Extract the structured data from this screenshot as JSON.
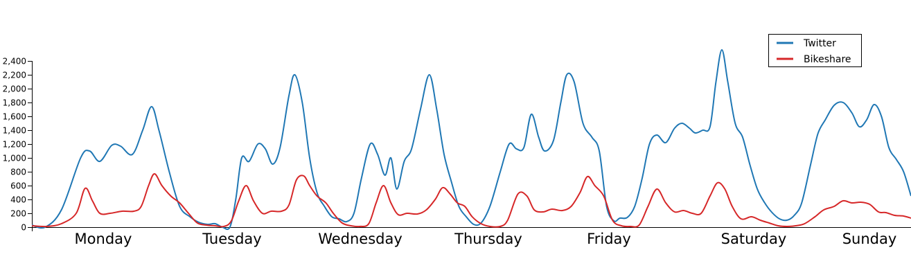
{
  "chart_data": {
    "type": "line",
    "x_categories": [
      "Monday",
      "Tuesday",
      "Wednesday",
      "Thursday",
      "Friday",
      "Saturday",
      "Sunday"
    ],
    "ylim": [
      0,
      2400
    ],
    "yticks": [
      0,
      200,
      400,
      600,
      800,
      1000,
      1200,
      1400,
      1600,
      1800,
      2000,
      2200,
      2400
    ],
    "ytick_labels": [
      "0",
      "200",
      "400",
      "600",
      "800",
      "1,000",
      "1,200",
      "1,400",
      "1,600",
      "1,800",
      "2,000",
      "2,200",
      "2,400"
    ],
    "legend_position": "top-right",
    "grid": false,
    "series": [
      {
        "name": "Twitter",
        "color": "#1f77b4",
        "points": [
          [
            0,
            30
          ],
          [
            0.9,
            0
          ],
          [
            2,
            250
          ],
          [
            3.3,
            1000
          ],
          [
            3.9,
            1100
          ],
          [
            4.6,
            950
          ],
          [
            5.4,
            1180
          ],
          [
            6,
            1170
          ],
          [
            6.8,
            1050
          ],
          [
            7.5,
            1400
          ],
          [
            8.1,
            1740
          ],
          [
            8.6,
            1400
          ],
          [
            9.3,
            800
          ],
          [
            10,
            300
          ],
          [
            10.7,
            150
          ],
          [
            11.3,
            70
          ],
          [
            11.9,
            40
          ],
          [
            12.4,
            50
          ],
          [
            12.9,
            0
          ],
          [
            13.4,
            0
          ],
          [
            13.8,
            400
          ],
          [
            14.2,
            1000
          ],
          [
            14.7,
            950
          ],
          [
            15.3,
            1200
          ],
          [
            15.8,
            1130
          ],
          [
            16.3,
            910
          ],
          [
            16.8,
            1150
          ],
          [
            17.4,
            1900
          ],
          [
            17.8,
            2200
          ],
          [
            18.3,
            1800
          ],
          [
            18.8,
            1000
          ],
          [
            19.3,
            500
          ],
          [
            19.8,
            300
          ],
          [
            20.3,
            150
          ],
          [
            20.8,
            120
          ],
          [
            21.3,
            80
          ],
          [
            21.8,
            200
          ],
          [
            22.3,
            700
          ],
          [
            22.9,
            1200
          ],
          [
            23.4,
            1050
          ],
          [
            23.9,
            750
          ],
          [
            24.3,
            1000
          ],
          [
            24.7,
            550
          ],
          [
            25.2,
            950
          ],
          [
            25.7,
            1130
          ],
          [
            26.3,
            1700
          ],
          [
            26.9,
            2200
          ],
          [
            27.4,
            1700
          ],
          [
            27.9,
            1050
          ],
          [
            28.4,
            650
          ],
          [
            28.9,
            300
          ],
          [
            29.4,
            150
          ],
          [
            29.9,
            40
          ],
          [
            30.4,
            60
          ],
          [
            31,
            300
          ],
          [
            31.7,
            800
          ],
          [
            32.3,
            1200
          ],
          [
            32.8,
            1130
          ],
          [
            33.3,
            1150
          ],
          [
            33.8,
            1630
          ],
          [
            34.3,
            1300
          ],
          [
            34.7,
            1100
          ],
          [
            35.3,
            1250
          ],
          [
            35.8,
            1800
          ],
          [
            36.2,
            2200
          ],
          [
            36.7,
            2100
          ],
          [
            37.3,
            1500
          ],
          [
            37.9,
            1300
          ],
          [
            38.4,
            1100
          ],
          [
            38.9,
            300
          ],
          [
            39.4,
            90
          ],
          [
            39.8,
            130
          ],
          [
            40.3,
            140
          ],
          [
            40.8,
            300
          ],
          [
            41.3,
            700
          ],
          [
            41.8,
            1200
          ],
          [
            42.3,
            1330
          ],
          [
            42.9,
            1220
          ],
          [
            43.5,
            1430
          ],
          [
            44,
            1500
          ],
          [
            44.5,
            1430
          ],
          [
            44.9,
            1360
          ],
          [
            45.4,
            1400
          ],
          [
            45.9,
            1450
          ],
          [
            46.3,
            2100
          ],
          [
            46.7,
            2560
          ],
          [
            47.1,
            2100
          ],
          [
            47.6,
            1500
          ],
          [
            48.1,
            1300
          ],
          [
            48.6,
            900
          ],
          [
            49.1,
            550
          ],
          [
            49.6,
            350
          ],
          [
            50.1,
            210
          ],
          [
            50.6,
            120
          ],
          [
            51.1,
            100
          ],
          [
            51.6,
            170
          ],
          [
            52.1,
            350
          ],
          [
            52.7,
            900
          ],
          [
            53.2,
            1350
          ],
          [
            53.7,
            1550
          ],
          [
            54.3,
            1760
          ],
          [
            54.9,
            1800
          ],
          [
            55.5,
            1650
          ],
          [
            56,
            1450
          ],
          [
            56.5,
            1550
          ],
          [
            57,
            1770
          ],
          [
            57.5,
            1600
          ],
          [
            58,
            1150
          ],
          [
            58.5,
            980
          ],
          [
            59,
            800
          ],
          [
            59.5,
            450
          ]
        ]
      },
      {
        "name": "Bikeshare",
        "color": "#d62728",
        "points": [
          [
            0,
            20
          ],
          [
            1,
            10
          ],
          [
            2,
            50
          ],
          [
            3,
            200
          ],
          [
            3.6,
            560
          ],
          [
            4.1,
            380
          ],
          [
            4.6,
            200
          ],
          [
            5.3,
            200
          ],
          [
            6.1,
            230
          ],
          [
            6.9,
            230
          ],
          [
            7.4,
            300
          ],
          [
            7.9,
            600
          ],
          [
            8.3,
            770
          ],
          [
            8.8,
            600
          ],
          [
            9.4,
            450
          ],
          [
            10,
            350
          ],
          [
            10.6,
            200
          ],
          [
            11.2,
            60
          ],
          [
            11.8,
            30
          ],
          [
            12.4,
            20
          ],
          [
            13,
            10
          ],
          [
            13.5,
            90
          ],
          [
            14,
            380
          ],
          [
            14.5,
            600
          ],
          [
            15,
            380
          ],
          [
            15.6,
            200
          ],
          [
            16.2,
            230
          ],
          [
            16.9,
            230
          ],
          [
            17.4,
            320
          ],
          [
            17.9,
            680
          ],
          [
            18.4,
            740
          ],
          [
            18.8,
            600
          ],
          [
            19.3,
            450
          ],
          [
            19.9,
            350
          ],
          [
            20.4,
            200
          ],
          [
            21,
            60
          ],
          [
            21.6,
            20
          ],
          [
            22.2,
            10
          ],
          [
            22.8,
            50
          ],
          [
            23.3,
            350
          ],
          [
            23.8,
            600
          ],
          [
            24.3,
            350
          ],
          [
            24.8,
            180
          ],
          [
            25.4,
            200
          ],
          [
            26.1,
            190
          ],
          [
            26.7,
            250
          ],
          [
            27.3,
            400
          ],
          [
            27.8,
            570
          ],
          [
            28.3,
            480
          ],
          [
            28.8,
            350
          ],
          [
            29.3,
            300
          ],
          [
            29.8,
            150
          ],
          [
            30.4,
            50
          ],
          [
            31,
            10
          ],
          [
            31.7,
            10
          ],
          [
            32.2,
            100
          ],
          [
            32.9,
            480
          ],
          [
            33.5,
            450
          ],
          [
            34,
            250
          ],
          [
            34.6,
            220
          ],
          [
            35.2,
            260
          ],
          [
            35.9,
            240
          ],
          [
            36.5,
            300
          ],
          [
            37.1,
            500
          ],
          [
            37.6,
            730
          ],
          [
            38.1,
            600
          ],
          [
            38.7,
            450
          ],
          [
            39.3,
            100
          ],
          [
            39.9,
            20
          ],
          [
            40.5,
            10
          ],
          [
            41.1,
            30
          ],
          [
            41.7,
            300
          ],
          [
            42.3,
            550
          ],
          [
            42.9,
            350
          ],
          [
            43.5,
            220
          ],
          [
            44.1,
            240
          ],
          [
            44.7,
            200
          ],
          [
            45.3,
            200
          ],
          [
            45.9,
            450
          ],
          [
            46.4,
            640
          ],
          [
            46.9,
            550
          ],
          [
            47.4,
            300
          ],
          [
            48,
            120
          ],
          [
            48.7,
            150
          ],
          [
            49.3,
            100
          ],
          [
            49.9,
            60
          ],
          [
            50.5,
            20
          ],
          [
            51.1,
            10
          ],
          [
            51.7,
            20
          ],
          [
            52.3,
            50
          ],
          [
            53,
            150
          ],
          [
            53.6,
            250
          ],
          [
            54.3,
            300
          ],
          [
            54.9,
            380
          ],
          [
            55.5,
            350
          ],
          [
            56.1,
            360
          ],
          [
            56.7,
            330
          ],
          [
            57.3,
            220
          ],
          [
            57.8,
            210
          ],
          [
            58.4,
            170
          ],
          [
            59,
            160
          ],
          [
            59.5,
            130
          ]
        ]
      }
    ]
  }
}
